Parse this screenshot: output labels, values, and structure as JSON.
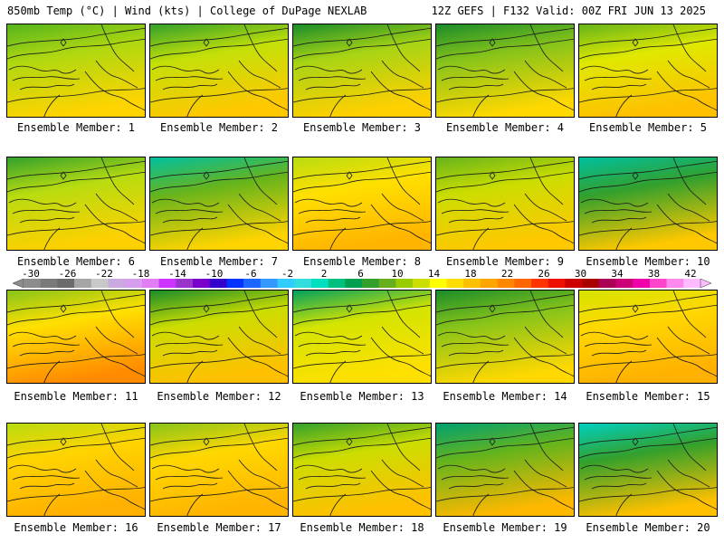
{
  "header": {
    "left": "850mb Temp (°C) | Wind (kts) | College of DuPage NEXLAB",
    "right": "12Z GEFS | F132 Valid: 00Z FRI JUN 13 2025"
  },
  "colorbar": {
    "labels": [
      "-30",
      "-26",
      "-22",
      "-18",
      "-14",
      "-10",
      "-6",
      "-2",
      "2",
      "6",
      "10",
      "14",
      "18",
      "22",
      "26",
      "30",
      "34",
      "38",
      "42"
    ],
    "colors": [
      "#8c8c8c",
      "#7a7a7a",
      "#6b6b6b",
      "#a5a5a5",
      "#c8c8c8",
      "#c9a9e0",
      "#d79ef0",
      "#e27ef5",
      "#cc33ff",
      "#9933cc",
      "#7a00cc",
      "#3300cc",
      "#0033ff",
      "#1a66ff",
      "#3399ff",
      "#33ccff",
      "#33dddd",
      "#00e0c0",
      "#00c080",
      "#00a050",
      "#33a02c",
      "#66b020",
      "#99cc00",
      "#ccdd00",
      "#ffff00",
      "#ffdd00",
      "#ffc000",
      "#ffa500",
      "#ff8800",
      "#ff6600",
      "#ff3300",
      "#ee1100",
      "#cc0000",
      "#a80000",
      "#aa0055",
      "#cc0077",
      "#ee00aa",
      "#ff44cc",
      "#ff88ee",
      "#ffbbff"
    ]
  },
  "members": [
    {
      "label": "Ensemble Member: 1",
      "top": "#55b41e",
      "mid": "#b0d810",
      "low": "#ffd400"
    },
    {
      "label": "Ensemble Member: 2",
      "top": "#33a02c",
      "mid": "#c4e008",
      "low": "#ffc800"
    },
    {
      "label": "Ensemble Member: 3",
      "top": "#1a8c2a",
      "mid": "#a8d414",
      "low": "#ffd000"
    },
    {
      "label": "Ensemble Member: 4",
      "top": "#1a8c2a",
      "mid": "#88c41a",
      "low": "#ffd800"
    },
    {
      "label": "Ensemble Member: 5",
      "top": "#66b41c",
      "mid": "#e0e800",
      "low": "#ffc000"
    },
    {
      "label": "Ensemble Member: 6",
      "top": "#33a02c",
      "mid": "#b8dc10",
      "low": "#ffd000"
    },
    {
      "label": "Ensemble Member: 7",
      "top": "#00c0a0",
      "mid": "#66b41c",
      "low": "#ffd400"
    },
    {
      "label": "Ensemble Member: 8",
      "top": "#b8dc10",
      "mid": "#ffe000",
      "low": "#ffb400"
    },
    {
      "label": "Ensemble Member: 9",
      "top": "#66b41c",
      "mid": "#ccdd00",
      "low": "#ffc800"
    },
    {
      "label": "Ensemble Member: 10",
      "top": "#00c0a0",
      "mid": "#33a02c",
      "low": "#ffc800"
    },
    {
      "label": "Ensemble Member: 11",
      "top": "#88c41a",
      "mid": "#ffe000",
      "low": "#ff8c00"
    },
    {
      "label": "Ensemble Member: 12",
      "top": "#1a8c2a",
      "mid": "#ccdd00",
      "low": "#ffc000"
    },
    {
      "label": "Ensemble Member: 13",
      "top": "#00a060",
      "mid": "#d4e400",
      "low": "#ffe000"
    },
    {
      "label": "Ensemble Member: 14",
      "top": "#1a8c2a",
      "mid": "#88c41a",
      "low": "#ffd800"
    },
    {
      "label": "Ensemble Member: 15",
      "top": "#d4e400",
      "mid": "#ffd800",
      "low": "#ffb000"
    },
    {
      "label": "Ensemble Member: 16",
      "top": "#b8dc10",
      "mid": "#ffd400",
      "low": "#ffb000"
    },
    {
      "label": "Ensemble Member: 17",
      "top": "#88c41a",
      "mid": "#ffd800",
      "low": "#ffb400"
    },
    {
      "label": "Ensemble Member: 18",
      "top": "#33a02c",
      "mid": "#ccdd00",
      "low": "#ffc000"
    },
    {
      "label": "Ensemble Member: 19",
      "top": "#00a070",
      "mid": "#66b41c",
      "low": "#ffb800"
    },
    {
      "label": "Ensemble Member: 20",
      "top": "#00d0c0",
      "mid": "#33a02c",
      "low": "#ffc000"
    }
  ]
}
